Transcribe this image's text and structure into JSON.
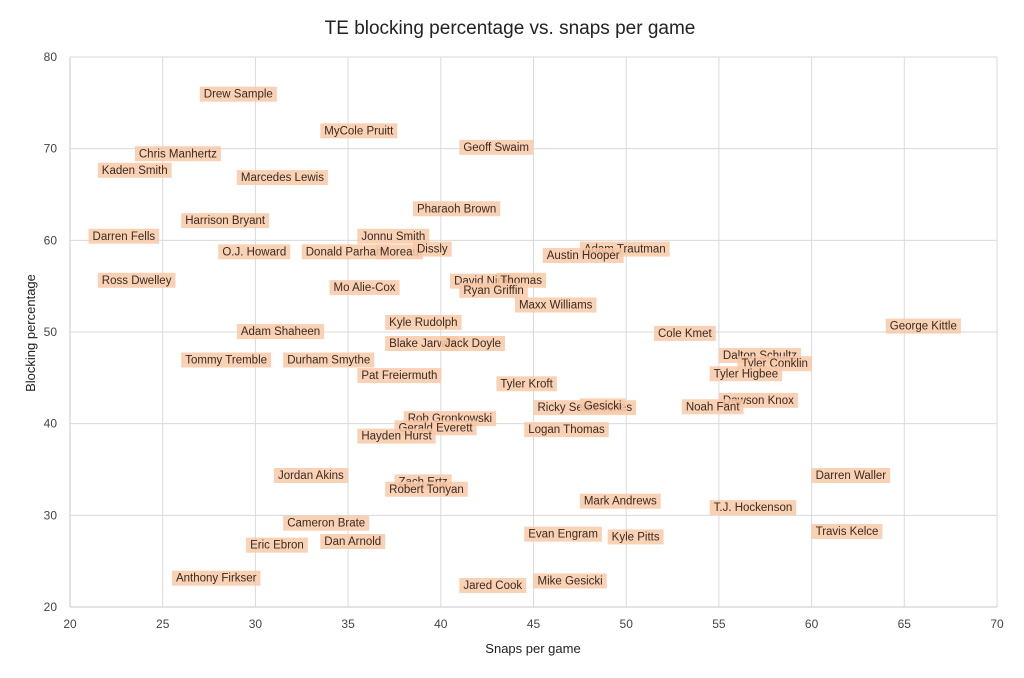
{
  "chart_data": {
    "type": "scatter",
    "title": "TE blocking percentage vs. snaps per game",
    "xlabel": "Snaps per game",
    "ylabel": "Blocking percentage",
    "xlim": [
      20,
      70
    ],
    "ylim": [
      20,
      80
    ],
    "xticks": [
      20,
      25,
      30,
      35,
      40,
      45,
      50,
      55,
      60,
      65,
      70
    ],
    "yticks": [
      20,
      30,
      40,
      50,
      60,
      70,
      80
    ],
    "grid": true,
    "label_color": "#f8c9a8",
    "points": [
      {
        "label": "Drew Sample",
        "x": 27.0,
        "y": 76.0
      },
      {
        "label": "MyCole Pruitt",
        "x": 33.5,
        "y": 72.0
      },
      {
        "label": "Chris Manhertz",
        "x": 23.5,
        "y": 69.5
      },
      {
        "label": "Kaden Smith",
        "x": 21.5,
        "y": 67.7
      },
      {
        "label": "Marcedes Lewis",
        "x": 29.0,
        "y": 66.9
      },
      {
        "label": "Geoff Swaim",
        "x": 41.0,
        "y": 70.2
      },
      {
        "label": "Pharaoh Brown",
        "x": 38.5,
        "y": 63.5
      },
      {
        "label": "Harrison Bryant",
        "x": 26.0,
        "y": 62.2
      },
      {
        "label": "Darren Fells",
        "x": 21.0,
        "y": 60.5
      },
      {
        "label": "Jonnu Smith",
        "x": 35.5,
        "y": 60.5
      },
      {
        "label": "O.J. Howard",
        "x": 28.0,
        "y": 58.8
      },
      {
        "label": "Donald Parham",
        "x": 32.5,
        "y": 58.8
      },
      {
        "label": "Moreau",
        "x": 36.5,
        "y": 58.8
      },
      {
        "label": "Dissly",
        "x": 38.5,
        "y": 59.1
      },
      {
        "label": "Adam Trautman",
        "x": 47.5,
        "y": 59.1
      },
      {
        "label": "Austin Hooper",
        "x": 45.5,
        "y": 58.4
      },
      {
        "label": "Ross Dwelley",
        "x": 21.5,
        "y": 55.7
      },
      {
        "label": "David Njoku",
        "x": 40.5,
        "y": 55.6
      },
      {
        "label": "Thomas",
        "x": 43.0,
        "y": 55.7
      },
      {
        "label": "Mo Alie-Cox",
        "x": 34.0,
        "y": 54.9
      },
      {
        "label": "Ryan Griffin",
        "x": 41.0,
        "y": 54.6
      },
      {
        "label": "Maxx Williams",
        "x": 44.0,
        "y": 53.0
      },
      {
        "label": "Kyle Rudolph",
        "x": 37.0,
        "y": 51.1
      },
      {
        "label": "George Kittle",
        "x": 64.0,
        "y": 50.7
      },
      {
        "label": "Adam Shaheen",
        "x": 29.0,
        "y": 50.1
      },
      {
        "label": "Cole Kmet",
        "x": 51.5,
        "y": 49.9
      },
      {
        "label": "Blake Jarwin",
        "x": 37.0,
        "y": 48.8
      },
      {
        "label": "Jack Doyle",
        "x": 40.0,
        "y": 48.8
      },
      {
        "label": "Dalton Schultz",
        "x": 55.0,
        "y": 47.5
      },
      {
        "label": "Tyler Conklin",
        "x": 56.0,
        "y": 46.6
      },
      {
        "label": "Tommy Tremble",
        "x": 26.0,
        "y": 47.0
      },
      {
        "label": "Durham Smythe",
        "x": 31.5,
        "y": 47.0
      },
      {
        "label": "Tyler Higbee",
        "x": 54.5,
        "y": 45.5
      },
      {
        "label": "Pat Freiermuth",
        "x": 35.5,
        "y": 45.3
      },
      {
        "label": "Tyler Kroft",
        "x": 43.0,
        "y": 44.4
      },
      {
        "label": "Dawson Knox",
        "x": 55.0,
        "y": 42.6
      },
      {
        "label": "Noah Fant",
        "x": 53.0,
        "y": 41.9
      },
      {
        "label": "Ricky Seals-Jones",
        "x": 45.0,
        "y": 41.8
      },
      {
        "label": "Gesicki",
        "x": 47.5,
        "y": 42.0
      },
      {
        "label": "Rob Gronkowski",
        "x": 38.0,
        "y": 40.6
      },
      {
        "label": "Gerald Everett",
        "x": 37.5,
        "y": 39.6
      },
      {
        "label": "Logan Thomas",
        "x": 44.5,
        "y": 39.4
      },
      {
        "label": "Hayden Hurst",
        "x": 35.5,
        "y": 38.7
      },
      {
        "label": "Jordan Akins",
        "x": 31.0,
        "y": 34.4
      },
      {
        "label": "Darren Waller",
        "x": 60.0,
        "y": 34.4
      },
      {
        "label": "Zach Ertz",
        "x": 37.5,
        "y": 33.7
      },
      {
        "label": "Robert Tonyan",
        "x": 37.0,
        "y": 32.9
      },
      {
        "label": "Mark Andrews",
        "x": 47.5,
        "y": 31.6
      },
      {
        "label": "T.J. Hockenson",
        "x": 54.5,
        "y": 30.9
      },
      {
        "label": "Cameron Brate",
        "x": 31.5,
        "y": 29.2
      },
      {
        "label": "Evan Engram",
        "x": 44.5,
        "y": 28.0
      },
      {
        "label": "Kyle Pitts",
        "x": 49.0,
        "y": 27.7
      },
      {
        "label": "Travis Kelce",
        "x": 60.0,
        "y": 28.3
      },
      {
        "label": "Dan Arnold",
        "x": 33.5,
        "y": 27.2
      },
      {
        "label": "Eric Ebron",
        "x": 29.5,
        "y": 26.8
      },
      {
        "label": "Anthony Firkser",
        "x": 25.5,
        "y": 23.2
      },
      {
        "label": "Mike Gesicki",
        "x": 45.0,
        "y": 22.9
      },
      {
        "label": "Jared Cook",
        "x": 41.0,
        "y": 22.4
      }
    ]
  }
}
